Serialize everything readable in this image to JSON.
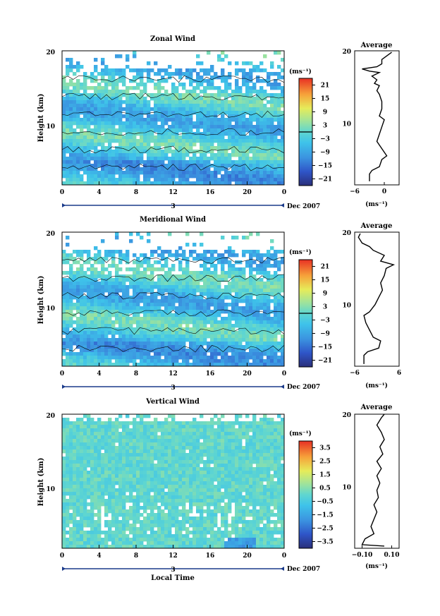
{
  "chart_data": [
    {
      "type": "heatmap",
      "title": "Zonal Wind",
      "ylabel": "Height (km)",
      "xlabel": "",
      "xlim": [
        0,
        24
      ],
      "ylim": [
        1.5,
        20
      ],
      "x_ticks": [
        "0",
        "4",
        "8",
        "12",
        "16",
        "20",
        "0"
      ],
      "y_ticks": [
        "20",
        "10"
      ],
      "day_label": "3",
      "month_label": "Dec 2007",
      "colorbar": {
        "unit_label": "(ms⁻¹)",
        "ticks": [
          "21",
          "15",
          "9",
          "3",
          "−3",
          "−9",
          "−15",
          "−21"
        ],
        "range": [
          -24,
          24
        ],
        "zero_contour": true
      },
      "profile": {
        "title": "Average",
        "xlim": [
          -6,
          3
        ],
        "x_ticks": [
          "−6",
          "0"
        ],
        "x_tick_values": [
          -6,
          0
        ],
        "xlabel": "(ms⁻¹)",
        "y_ticks": [
          "20",
          "10"
        ],
        "points": [
          [
            -3.0,
            2.0
          ],
          [
            -3.0,
            3.0
          ],
          [
            -2.5,
            3.5
          ],
          [
            -1.0,
            4.0
          ],
          [
            -0.5,
            5.0
          ],
          [
            0.5,
            5.5
          ],
          [
            -0.5,
            6.5
          ],
          [
            -1.5,
            7.5
          ],
          [
            -1.0,
            8.5
          ],
          [
            -0.5,
            9.5
          ],
          [
            0.0,
            10.5
          ],
          [
            -1.0,
            11.0
          ],
          [
            -0.5,
            12.0
          ],
          [
            -0.5,
            13.0
          ],
          [
            -1.0,
            14.0
          ],
          [
            -1.5,
            14.5
          ],
          [
            -1.0,
            15.2
          ],
          [
            -2.0,
            15.5
          ],
          [
            -1.5,
            16.0
          ],
          [
            -2.5,
            16.5
          ],
          [
            -1.0,
            17.0
          ],
          [
            -3.0,
            17.2
          ],
          [
            -4.5,
            17.5
          ],
          [
            -1.5,
            17.8
          ],
          [
            -0.5,
            18.2
          ],
          [
            -0.5,
            18.8
          ],
          [
            0.5,
            19.3
          ],
          [
            1.5,
            19.8
          ]
        ]
      }
    },
    {
      "type": "heatmap",
      "title": "Meridional Wind",
      "ylabel": "Height (km)",
      "xlabel": "",
      "xlim": [
        0,
        24
      ],
      "ylim": [
        1.5,
        20
      ],
      "x_ticks": [
        "0",
        "4",
        "8",
        "12",
        "16",
        "20",
        "0"
      ],
      "y_ticks": [
        "20",
        "10"
      ],
      "day_label": "3",
      "month_label": "Dec 2007",
      "colorbar": {
        "unit_label": "(ms⁻¹)",
        "ticks": [
          "21",
          "15",
          "9",
          "3",
          "−3",
          "−9",
          "−15",
          "−21"
        ],
        "range": [
          -24,
          24
        ],
        "zero_contour": true
      },
      "profile": {
        "title": "Average",
        "xlim": [
          -6,
          6
        ],
        "x_ticks": [
          "−6",
          "6"
        ],
        "x_tick_values": [
          -6,
          6
        ],
        "xlabel": "(ms⁻¹)",
        "y_ticks": [
          "20",
          "10"
        ],
        "points": [
          [
            -3.5,
            1.8
          ],
          [
            -3.5,
            3.0
          ],
          [
            -2.5,
            3.5
          ],
          [
            0.5,
            4.0
          ],
          [
            1.0,
            5.0
          ],
          [
            -1.0,
            5.5
          ],
          [
            -2.0,
            6.5
          ],
          [
            -3.0,
            7.5
          ],
          [
            -3.5,
            8.5
          ],
          [
            -2.0,
            9.0
          ],
          [
            -0.5,
            10.0
          ],
          [
            0.5,
            11.0
          ],
          [
            1.5,
            12.0
          ],
          [
            1.0,
            13.0
          ],
          [
            2.0,
            14.0
          ],
          [
            2.5,
            15.0
          ],
          [
            4.5,
            15.5
          ],
          [
            1.0,
            16.0
          ],
          [
            2.0,
            16.8
          ],
          [
            -1.0,
            17.5
          ],
          [
            -2.0,
            18.0
          ],
          [
            -4.0,
            18.5
          ],
          [
            -5.0,
            19.3
          ],
          [
            -4.5,
            19.8
          ]
        ]
      }
    },
    {
      "type": "heatmap",
      "title": "Vertical Wind",
      "ylabel": "Height (km)",
      "xlabel": "Local Time",
      "xlim": [
        0,
        24
      ],
      "ylim": [
        1.5,
        20
      ],
      "x_ticks": [
        "0",
        "4",
        "8",
        "12",
        "16",
        "20",
        "0"
      ],
      "y_ticks": [
        "20",
        "10"
      ],
      "day_label": "3",
      "month_label": "Dec 2007",
      "colorbar": {
        "unit_label": "(ms⁻¹)",
        "ticks": [
          "3.5",
          "2.5",
          "1.5",
          "0.5",
          "−0.5",
          "−1.5",
          "−2.5",
          "−3.5"
        ],
        "range": [
          -4,
          4
        ],
        "zero_contour": false
      },
      "profile": {
        "title": "Average",
        "xlim": [
          -0.15,
          0.15
        ],
        "x_ticks": [
          "−0.10",
          "0.10"
        ],
        "x_tick_values": [
          -0.1,
          0.1
        ],
        "xlabel": "(ms⁻¹)",
        "y_ticks": [
          "20",
          "10"
        ],
        "points": [
          [
            0.05,
            1.8
          ],
          [
            -0.1,
            2.0
          ],
          [
            -0.08,
            2.8
          ],
          [
            -0.02,
            3.5
          ],
          [
            -0.04,
            4.5
          ],
          [
            -0.02,
            5.5
          ],
          [
            0.0,
            6.5
          ],
          [
            -0.02,
            7.5
          ],
          [
            0.01,
            8.5
          ],
          [
            0.0,
            9.5
          ],
          [
            0.02,
            10.5
          ],
          [
            0.0,
            11.5
          ],
          [
            0.03,
            12.5
          ],
          [
            0.0,
            13.5
          ],
          [
            0.04,
            14.5
          ],
          [
            0.02,
            15.5
          ],
          [
            0.05,
            16.5
          ],
          [
            0.03,
            17.5
          ],
          [
            0.0,
            18.5
          ],
          [
            0.03,
            19.5
          ],
          [
            0.05,
            20.0
          ]
        ]
      }
    }
  ]
}
